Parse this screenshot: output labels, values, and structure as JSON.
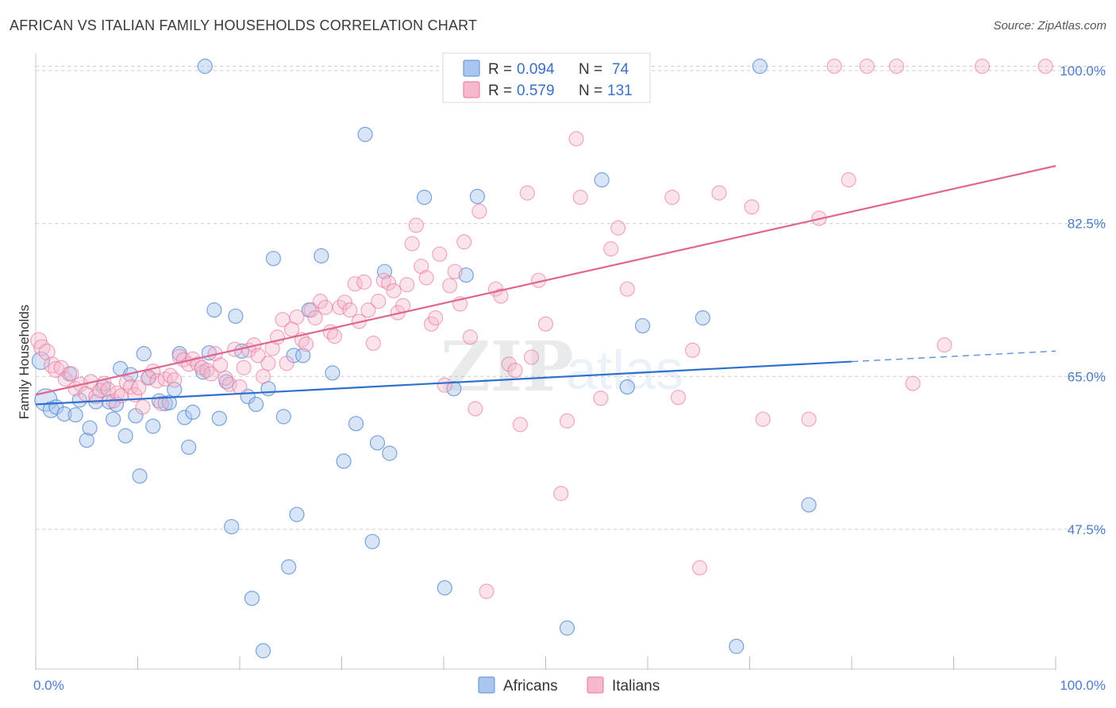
{
  "header": {
    "title": "AFRICAN VS ITALIAN FAMILY HOUSEHOLDS CORRELATION CHART",
    "source": "Source: ZipAtlas.com"
  },
  "watermark": {
    "zip": "ZIP",
    "atlas": "atlas"
  },
  "legend": {
    "africans": {
      "r_label": "R =",
      "r_value": "0.094",
      "n_label": "N =",
      "n_value": "74"
    },
    "italians": {
      "r_label": "R =",
      "r_value": "0.579",
      "n_label": "N =",
      "n_value": "131"
    }
  },
  "colors": {
    "africans": "#5b8fd6",
    "africans_fill": "#a9c6ee",
    "italians": "#e8739b",
    "italians_fill": "#f5b8cc",
    "tick_label": "#4a7cc9",
    "grid": "#cccccc"
  },
  "chart_data": {
    "type": "scatter",
    "title": "AFRICAN VS ITALIAN FAMILY HOUSEHOLDS CORRELATION CHART",
    "xlabel": "",
    "ylabel": "Family Households",
    "xlim": [
      0,
      100
    ],
    "ylim": [
      31.5,
      102.0
    ],
    "x_tick_labels": [
      "0.0%",
      "100.0%"
    ],
    "y_ticks": [
      47.5,
      65.0,
      82.5,
      100.0
    ],
    "y_tick_labels": [
      "47.5%",
      "65.0%",
      "82.5%",
      "100.0%"
    ],
    "grid": true,
    "legend_position": "top-center",
    "series": [
      {
        "name": "Africans",
        "r": 0.094,
        "n": 74,
        "trend": {
          "x0": 0,
          "y0": 61.8,
          "x1": 80,
          "y1": 66.7,
          "dash_to_x": 100,
          "dash_to_y": 67.9
        },
        "points": [
          [
            0.5,
            66.8,
            11
          ],
          [
            1.0,
            62.3,
            14
          ],
          [
            1.5,
            61.2,
            10
          ],
          [
            2.0,
            61.5,
            9
          ],
          [
            2.8,
            60.7,
            9
          ],
          [
            3.3,
            65.3,
            9
          ],
          [
            3.9,
            60.6,
            9
          ],
          [
            4.3,
            62.3,
            9
          ],
          [
            5.0,
            57.7,
            9
          ],
          [
            5.3,
            59.1,
            9
          ],
          [
            5.9,
            62.1,
            9
          ],
          [
            6.6,
            63.8,
            9
          ],
          [
            7.2,
            62.1,
            9
          ],
          [
            7.6,
            60.1,
            9
          ],
          [
            7.9,
            61.8,
            9
          ],
          [
            8.3,
            65.9,
            9
          ],
          [
            8.8,
            58.2,
            9
          ],
          [
            9.3,
            65.2,
            9
          ],
          [
            9.8,
            60.5,
            9
          ],
          [
            10.2,
            53.6,
            9
          ],
          [
            10.6,
            67.6,
            9
          ],
          [
            11.1,
            64.9,
            9
          ],
          [
            11.5,
            59.3,
            9
          ],
          [
            12.1,
            62.2,
            9
          ],
          [
            12.7,
            61.9,
            9
          ],
          [
            13.1,
            62.0,
            9
          ],
          [
            13.6,
            63.5,
            9
          ],
          [
            14.1,
            67.6,
            9
          ],
          [
            14.6,
            60.3,
            9
          ],
          [
            15.0,
            56.9,
            9
          ],
          [
            15.4,
            60.9,
            9
          ],
          [
            16.4,
            65.5,
            9
          ],
          [
            16.6,
            100.5,
            9
          ],
          [
            17.0,
            67.7,
            9
          ],
          [
            17.5,
            72.6,
            9
          ],
          [
            18.0,
            60.2,
            9
          ],
          [
            18.7,
            64.4,
            9
          ],
          [
            19.2,
            47.8,
            9
          ],
          [
            19.6,
            71.9,
            9
          ],
          [
            20.2,
            67.9,
            9
          ],
          [
            20.8,
            62.7,
            9
          ],
          [
            21.2,
            39.6,
            9
          ],
          [
            21.6,
            61.8,
            9
          ],
          [
            22.3,
            33.6,
            9
          ],
          [
            22.8,
            63.6,
            9
          ],
          [
            23.3,
            78.5,
            9
          ],
          [
            24.3,
            60.4,
            9
          ],
          [
            24.8,
            43.2,
            9
          ],
          [
            25.3,
            67.4,
            9
          ],
          [
            25.6,
            49.2,
            9
          ],
          [
            26.2,
            67.4,
            9
          ],
          [
            26.8,
            72.6,
            9
          ],
          [
            28.0,
            78.8,
            9
          ],
          [
            29.1,
            65.4,
            9
          ],
          [
            30.2,
            55.3,
            9
          ],
          [
            31.4,
            59.6,
            9
          ],
          [
            32.3,
            92.7,
            9
          ],
          [
            33.0,
            46.1,
            9
          ],
          [
            33.5,
            57.4,
            9
          ],
          [
            34.2,
            77.0,
            9
          ],
          [
            34.7,
            56.2,
            9
          ],
          [
            38.1,
            85.5,
            9
          ],
          [
            40.1,
            40.8,
            9
          ],
          [
            41.0,
            63.6,
            9
          ],
          [
            42.2,
            76.6,
            9
          ],
          [
            43.3,
            85.6,
            9
          ],
          [
            52.1,
            36.2,
            9
          ],
          [
            55.5,
            87.5,
            9
          ],
          [
            58.0,
            63.8,
            9
          ],
          [
            59.5,
            70.8,
            9
          ],
          [
            65.4,
            71.7,
            9
          ],
          [
            68.7,
            34.1,
            9
          ],
          [
            71.0,
            100.5,
            9
          ],
          [
            75.8,
            50.3,
            9
          ]
        ]
      },
      {
        "name": "Italians",
        "r": 0.579,
        "n": 131,
        "trend": {
          "x0": 0,
          "y0": 62.9,
          "x1": 100,
          "y1": 89.1
        },
        "points": [
          [
            0.3,
            69.1,
            10
          ],
          [
            0.6,
            68.3,
            10
          ],
          [
            1.1,
            67.8,
            10
          ],
          [
            1.6,
            66.3,
            10
          ],
          [
            2.0,
            65.8,
            10
          ],
          [
            2.5,
            66.0,
            9
          ],
          [
            2.9,
            64.7,
            9
          ],
          [
            3.5,
            65.3,
            9
          ],
          [
            3.9,
            63.6,
            9
          ],
          [
            4.4,
            64.1,
            9
          ],
          [
            4.9,
            63.0,
            9
          ],
          [
            5.4,
            64.4,
            9
          ],
          [
            5.9,
            62.7,
            9
          ],
          [
            6.3,
            63.4,
            9
          ],
          [
            6.7,
            64.2,
            9
          ],
          [
            7.1,
            63.5,
            9
          ],
          [
            7.6,
            62.2,
            9
          ],
          [
            8.0,
            63.1,
            9
          ],
          [
            8.4,
            62.8,
            9
          ],
          [
            8.9,
            64.3,
            9
          ],
          [
            9.3,
            63.8,
            9
          ],
          [
            9.7,
            62.9,
            9
          ],
          [
            10.1,
            63.7,
            9
          ],
          [
            10.5,
            61.5,
            9
          ],
          [
            11.0,
            64.8,
            9
          ],
          [
            11.5,
            65.6,
            9
          ],
          [
            11.9,
            64.5,
            9
          ],
          [
            12.3,
            61.9,
            9
          ],
          [
            12.7,
            64.7,
            9
          ],
          [
            13.2,
            65.1,
            9
          ],
          [
            13.6,
            64.6,
            9
          ],
          [
            14.1,
            67.3,
            9
          ],
          [
            14.5,
            66.9,
            9
          ],
          [
            15.0,
            66.4,
            9
          ],
          [
            15.4,
            67.0,
            9
          ],
          [
            15.9,
            66.4,
            9
          ],
          [
            16.3,
            66.0,
            9
          ],
          [
            16.8,
            65.7,
            9
          ],
          [
            17.2,
            65.3,
            9
          ],
          [
            17.6,
            67.6,
            9
          ],
          [
            18.1,
            66.3,
            9
          ],
          [
            18.6,
            64.8,
            9
          ],
          [
            19.0,
            64.1,
            9
          ],
          [
            19.5,
            68.1,
            9
          ],
          [
            20.0,
            63.8,
            9
          ],
          [
            20.4,
            66.0,
            9
          ],
          [
            20.9,
            68.0,
            9
          ],
          [
            21.4,
            68.6,
            9
          ],
          [
            21.8,
            67.4,
            9
          ],
          [
            22.3,
            65.0,
            9
          ],
          [
            22.8,
            66.5,
            9
          ],
          [
            23.2,
            68.2,
            9
          ],
          [
            23.7,
            69.5,
            9
          ],
          [
            24.2,
            71.5,
            9
          ],
          [
            24.6,
            66.5,
            9
          ],
          [
            25.1,
            70.4,
            9
          ],
          [
            25.6,
            71.8,
            9
          ],
          [
            26.1,
            69.2,
            9
          ],
          [
            26.5,
            68.7,
            9
          ],
          [
            27.0,
            72.6,
            9
          ],
          [
            27.4,
            71.7,
            9
          ],
          [
            27.9,
            73.6,
            9
          ],
          [
            28.4,
            72.9,
            9
          ],
          [
            28.9,
            70.1,
            9
          ],
          [
            29.3,
            69.6,
            9
          ],
          [
            29.8,
            72.9,
            9
          ],
          [
            30.3,
            73.5,
            9
          ],
          [
            30.8,
            72.6,
            9
          ],
          [
            31.3,
            75.6,
            9
          ],
          [
            31.7,
            71.3,
            9
          ],
          [
            32.2,
            75.8,
            9
          ],
          [
            32.6,
            72.6,
            9
          ],
          [
            33.1,
            68.8,
            9
          ],
          [
            33.6,
            73.6,
            9
          ],
          [
            34.1,
            76.0,
            9
          ],
          [
            34.6,
            75.7,
            9
          ],
          [
            35.1,
            74.8,
            9
          ],
          [
            35.5,
            72.3,
            9
          ],
          [
            36.0,
            73.1,
            9
          ],
          [
            36.4,
            75.5,
            9
          ],
          [
            36.9,
            80.2,
            9
          ],
          [
            37.3,
            82.3,
            9
          ],
          [
            37.8,
            77.6,
            9
          ],
          [
            38.3,
            76.3,
            9
          ],
          [
            38.8,
            71.0,
            9
          ],
          [
            39.2,
            71.7,
            9
          ],
          [
            39.6,
            79.0,
            9
          ],
          [
            40.1,
            64.0,
            9
          ],
          [
            40.6,
            75.4,
            9
          ],
          [
            41.1,
            77.0,
            9
          ],
          [
            41.6,
            73.3,
            9
          ],
          [
            42.0,
            80.4,
            9
          ],
          [
            42.6,
            69.5,
            9
          ],
          [
            43.1,
            61.3,
            9
          ],
          [
            43.5,
            83.9,
            9
          ],
          [
            44.2,
            40.4,
            9
          ],
          [
            45.1,
            75.0,
            9
          ],
          [
            45.6,
            74.2,
            9
          ],
          [
            46.4,
            66.4,
            9
          ],
          [
            47.0,
            65.7,
            9
          ],
          [
            47.5,
            59.5,
            9
          ],
          [
            48.2,
            86.0,
            9
          ],
          [
            48.6,
            67.2,
            9
          ],
          [
            49.3,
            76.0,
            9
          ],
          [
            50.0,
            71.0,
            9
          ],
          [
            51.5,
            51.6,
            9
          ],
          [
            52.1,
            59.9,
            9
          ],
          [
            53.0,
            92.2,
            9
          ],
          [
            53.4,
            85.5,
            9
          ],
          [
            55.4,
            62.5,
            9
          ],
          [
            56.4,
            79.6,
            9
          ],
          [
            57.1,
            82.0,
            9
          ],
          [
            58.0,
            75.0,
            9
          ],
          [
            59.4,
            100.5,
            9
          ],
          [
            62.4,
            85.5,
            9
          ],
          [
            63.0,
            62.6,
            9
          ],
          [
            64.4,
            68.0,
            9
          ],
          [
            65.1,
            43.1,
            9
          ],
          [
            67.0,
            86.0,
            9
          ],
          [
            70.2,
            84.4,
            9
          ],
          [
            71.3,
            60.1,
            9
          ],
          [
            75.8,
            60.1,
            9
          ],
          [
            76.8,
            83.1,
            9
          ],
          [
            78.3,
            100.5,
            9
          ],
          [
            79.7,
            87.5,
            9
          ],
          [
            81.5,
            100.5,
            9
          ],
          [
            84.4,
            100.5,
            9
          ],
          [
            86.0,
            64.2,
            9
          ],
          [
            89.1,
            68.6,
            9
          ],
          [
            92.8,
            100.5,
            9
          ],
          [
            99.0,
            100.5,
            9
          ]
        ]
      }
    ]
  },
  "bottom_legend": {
    "africans": "Africans",
    "italians": "Italians"
  }
}
